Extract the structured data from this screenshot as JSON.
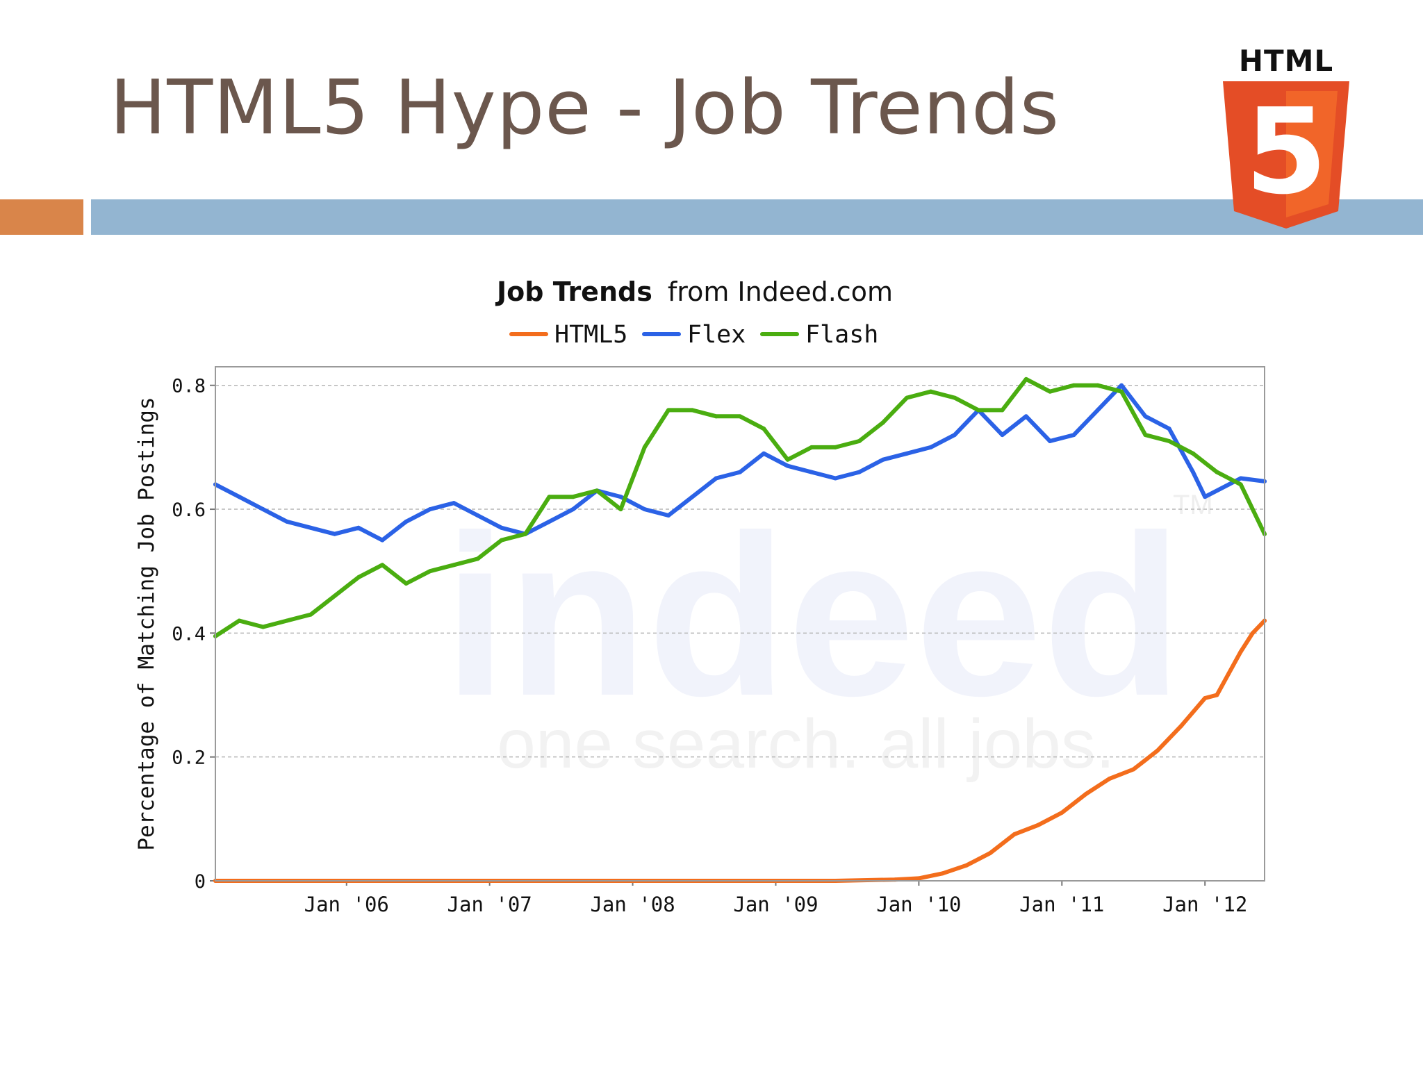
{
  "slide": {
    "title": "HTML5 Hype - Job Trends"
  },
  "logo": {
    "word": "HTML",
    "digit": "5"
  },
  "colors": {
    "title": "#6b574d",
    "accent_orange": "#d9854a",
    "accent_blue": "#93b5d1",
    "html5_orange": "#e44d26",
    "html5_light": "#f16529",
    "series_html5": "#f36d1c",
    "series_flex": "#2b62e6",
    "series_flash": "#4aad10"
  },
  "watermark": {
    "brand": "indeed",
    "tagline": "one search. all jobs.",
    "tm": "TM"
  },
  "chart_data": {
    "type": "line",
    "title_bold": "Job Trends",
    "title_rest": "from Indeed.com",
    "ylabel": "Percentage of Matching Job Postings",
    "xlabel": "",
    "x_ticks": [
      "Jan '06",
      "Jan '07",
      "Jan '08",
      "Jan '09",
      "Jan '10",
      "Jan '11",
      "Jan '12"
    ],
    "y_ticks": [
      "0",
      "0.2",
      "0.4",
      "0.6",
      "0.8"
    ],
    "xlim": [
      "2005-02",
      "2012-06"
    ],
    "ylim": [
      0,
      0.83
    ],
    "grid": true,
    "legend_position": "top-center",
    "series": [
      {
        "name": "HTML5",
        "color": "#f36d1c",
        "points": [
          [
            "2005-02",
            0
          ],
          [
            "2009-06",
            0
          ],
          [
            "2009-11",
            0.002
          ],
          [
            "2010-01",
            0.004
          ],
          [
            "2010-03",
            0.012
          ],
          [
            "2010-05",
            0.025
          ],
          [
            "2010-07",
            0.045
          ],
          [
            "2010-09",
            0.075
          ],
          [
            "2010-11",
            0.09
          ],
          [
            "2011-01",
            0.11
          ],
          [
            "2011-03",
            0.14
          ],
          [
            "2011-05",
            0.165
          ],
          [
            "2011-07",
            0.18
          ],
          [
            "2011-09",
            0.21
          ],
          [
            "2011-11",
            0.25
          ],
          [
            "2012-01",
            0.295
          ],
          [
            "2012-02",
            0.3
          ],
          [
            "2012-03",
            0.335
          ],
          [
            "2012-04",
            0.37
          ],
          [
            "2012-05",
            0.4
          ],
          [
            "2012-06",
            0.42
          ]
        ]
      },
      {
        "name": "Flex",
        "color": "#2b62e6",
        "points": [
          [
            "2005-02",
            0.64
          ],
          [
            "2005-04",
            0.62
          ],
          [
            "2005-06",
            0.6
          ],
          [
            "2005-08",
            0.58
          ],
          [
            "2005-10",
            0.57
          ],
          [
            "2005-12",
            0.56
          ],
          [
            "2006-02",
            0.57
          ],
          [
            "2006-04",
            0.55
          ],
          [
            "2006-06",
            0.58
          ],
          [
            "2006-08",
            0.6
          ],
          [
            "2006-10",
            0.61
          ],
          [
            "2006-12",
            0.59
          ],
          [
            "2007-02",
            0.57
          ],
          [
            "2007-04",
            0.56
          ],
          [
            "2007-06",
            0.58
          ],
          [
            "2007-08",
            0.6
          ],
          [
            "2007-10",
            0.63
          ],
          [
            "2007-12",
            0.62
          ],
          [
            "2008-02",
            0.6
          ],
          [
            "2008-04",
            0.59
          ],
          [
            "2008-06",
            0.62
          ],
          [
            "2008-08",
            0.65
          ],
          [
            "2008-10",
            0.66
          ],
          [
            "2008-12",
            0.69
          ],
          [
            "2009-02",
            0.67
          ],
          [
            "2009-04",
            0.66
          ],
          [
            "2009-06",
            0.65
          ],
          [
            "2009-08",
            0.66
          ],
          [
            "2009-10",
            0.68
          ],
          [
            "2009-12",
            0.69
          ],
          [
            "2010-02",
            0.7
          ],
          [
            "2010-04",
            0.72
          ],
          [
            "2010-06",
            0.76
          ],
          [
            "2010-08",
            0.72
          ],
          [
            "2010-10",
            0.75
          ],
          [
            "2010-12",
            0.71
          ],
          [
            "2011-02",
            0.72
          ],
          [
            "2011-04",
            0.76
          ],
          [
            "2011-06",
            0.8
          ],
          [
            "2011-08",
            0.75
          ],
          [
            "2011-10",
            0.73
          ],
          [
            "2011-12",
            0.66
          ],
          [
            "2012-01",
            0.62
          ],
          [
            "2012-03",
            0.64
          ],
          [
            "2012-04",
            0.65
          ],
          [
            "2012-06",
            0.645
          ]
        ]
      },
      {
        "name": "Flash",
        "color": "#4aad10",
        "points": [
          [
            "2005-02",
            0.395
          ],
          [
            "2005-04",
            0.42
          ],
          [
            "2005-06",
            0.41
          ],
          [
            "2005-08",
            0.42
          ],
          [
            "2005-10",
            0.43
          ],
          [
            "2005-12",
            0.46
          ],
          [
            "2006-02",
            0.49
          ],
          [
            "2006-04",
            0.51
          ],
          [
            "2006-06",
            0.48
          ],
          [
            "2006-08",
            0.5
          ],
          [
            "2006-10",
            0.51
          ],
          [
            "2006-12",
            0.52
          ],
          [
            "2007-02",
            0.55
          ],
          [
            "2007-04",
            0.56
          ],
          [
            "2007-06",
            0.62
          ],
          [
            "2007-08",
            0.62
          ],
          [
            "2007-10",
            0.63
          ],
          [
            "2007-12",
            0.6
          ],
          [
            "2008-02",
            0.7
          ],
          [
            "2008-04",
            0.76
          ],
          [
            "2008-06",
            0.76
          ],
          [
            "2008-08",
            0.75
          ],
          [
            "2008-10",
            0.75
          ],
          [
            "2008-12",
            0.73
          ],
          [
            "2009-02",
            0.68
          ],
          [
            "2009-04",
            0.7
          ],
          [
            "2009-06",
            0.7
          ],
          [
            "2009-08",
            0.71
          ],
          [
            "2009-10",
            0.74
          ],
          [
            "2009-12",
            0.78
          ],
          [
            "2010-02",
            0.79
          ],
          [
            "2010-04",
            0.78
          ],
          [
            "2010-06",
            0.76
          ],
          [
            "2010-08",
            0.76
          ],
          [
            "2010-10",
            0.81
          ],
          [
            "2010-12",
            0.79
          ],
          [
            "2011-02",
            0.8
          ],
          [
            "2011-04",
            0.8
          ],
          [
            "2011-06",
            0.79
          ],
          [
            "2011-08",
            0.72
          ],
          [
            "2011-10",
            0.71
          ],
          [
            "2011-12",
            0.69
          ],
          [
            "2012-02",
            0.66
          ],
          [
            "2012-04",
            0.64
          ],
          [
            "2012-06",
            0.56
          ]
        ]
      }
    ]
  }
}
